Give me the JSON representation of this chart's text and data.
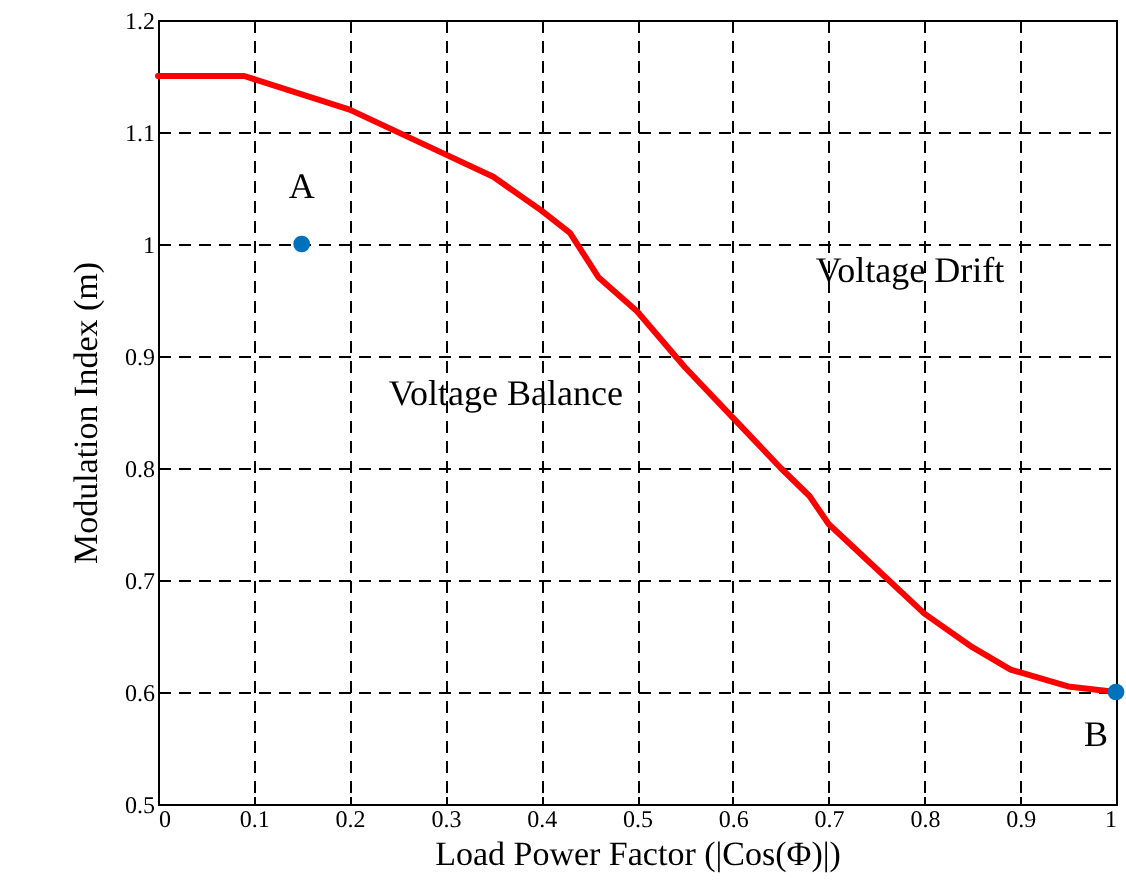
{
  "chart_data": {
    "type": "line",
    "xlabel": "Load Power Factor (|Cos(Φ)|)",
    "ylabel": "Modulation Index (m)",
    "xlim": [
      0,
      1
    ],
    "ylim": [
      0.5,
      1.2
    ],
    "xticks": [
      0,
      0.1,
      0.2,
      0.3,
      0.4,
      0.5,
      0.6,
      0.7,
      0.8,
      0.9,
      1
    ],
    "yticks": [
      0.5,
      0.6,
      0.7,
      0.8,
      0.9,
      1,
      1.1,
      1.2
    ],
    "grid": true,
    "series": [
      {
        "type": "line",
        "color": "#ff0000",
        "line_style": "solid",
        "x": [
          0,
          0.09,
          0.2,
          0.3,
          0.35,
          0.4,
          0.43,
          0.46,
          0.5,
          0.55,
          0.6,
          0.65,
          0.68,
          0.7,
          0.75,
          0.8,
          0.85,
          0.89,
          0.95,
          1
        ],
        "values": [
          1.15,
          1.15,
          1.12,
          1.08,
          1.06,
          1.03,
          1.01,
          0.97,
          0.94,
          0.89,
          0.845,
          0.8,
          0.775,
          0.75,
          0.71,
          0.67,
          0.64,
          0.62,
          0.605,
          0.6
        ]
      },
      {
        "type": "scatter",
        "color": "#0072bd",
        "marker": "circle",
        "x": [
          0.15,
          1
        ],
        "values": [
          1.0,
          0.6
        ]
      }
    ],
    "annotations": [
      {
        "text": "A",
        "x": 0.15,
        "y": 1.0
      },
      {
        "text": "B",
        "x": 1,
        "y": 0.6
      },
      "Voltage Drift",
      "Voltage Balance"
    ]
  }
}
